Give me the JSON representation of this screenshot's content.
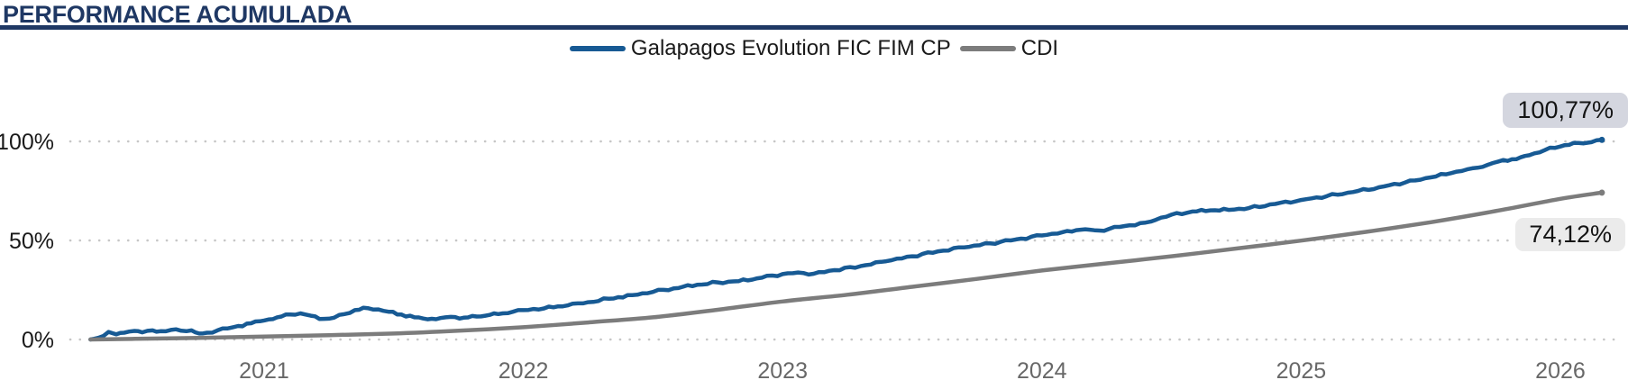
{
  "header": {
    "title": "PERFORMANCE ACUMULADA"
  },
  "legend": {
    "fund": "Galapagos Evolution FIC FIM CP",
    "cdi": "CDI",
    "position": "top-center"
  },
  "colors": {
    "title_navy": "#1F3864",
    "fund_line": "#175A94",
    "cdi_line": "#7C7C7C",
    "grid_dots": "#C6C6C6",
    "y_label": "#1A1A1A",
    "x_label": "#686868",
    "fund_badge_bg": "#D4D6DF",
    "cdi_badge_bg": "#EBEBEB",
    "badge_text": "#141414"
  },
  "chart_data": {
    "type": "line",
    "title": "PERFORMANCE ACUMULADA",
    "xlabel": "",
    "ylabel": "",
    "grid": "dotted-horizontal",
    "legend_position": "top-center",
    "x_ticks": [
      {
        "label": "2021",
        "year": 2021
      },
      {
        "label": "2022",
        "year": 2022
      },
      {
        "label": "2023",
        "year": 2023
      },
      {
        "label": "2024",
        "year": 2024
      },
      {
        "label": "2025",
        "year": 2025
      },
      {
        "label": "2026",
        "year": 2026
      }
    ],
    "y_ticks": [
      {
        "label": "0%",
        "value": 0
      },
      {
        "label": "50%",
        "value": 50
      },
      {
        "label": "100%",
        "value": 100
      }
    ],
    "x_range_years": [
      2020.33,
      2026.32
    ],
    "y_range_pct": [
      0,
      100.77
    ],
    "series": [
      {
        "name": "Galapagos Evolution FIC FIM CP",
        "color": "#175A94",
        "end_label": "100,77%",
        "end_value": 100.77,
        "noisy": true,
        "points": [
          [
            2020.33,
            0
          ],
          [
            2020.36,
            0.8
          ],
          [
            2020.4,
            3.8
          ],
          [
            2020.43,
            2.6
          ],
          [
            2020.46,
            3.4
          ],
          [
            2020.5,
            4.3
          ],
          [
            2020.53,
            3.6
          ],
          [
            2020.57,
            4.6
          ],
          [
            2020.6,
            4.2
          ],
          [
            2020.64,
            4.8
          ],
          [
            2020.68,
            4.4
          ],
          [
            2020.72,
            4.6
          ],
          [
            2020.75,
            3.0
          ],
          [
            2020.78,
            3.4
          ],
          [
            2020.82,
            4.6
          ],
          [
            2020.86,
            5.6
          ],
          [
            2020.9,
            6.8
          ],
          [
            2020.95,
            8.2
          ],
          [
            2021.0,
            9.6
          ],
          [
            2021.05,
            11.2
          ],
          [
            2021.1,
            12.6
          ],
          [
            2021.14,
            13.2
          ],
          [
            2021.18,
            12.0
          ],
          [
            2021.23,
            10.4
          ],
          [
            2021.27,
            11.0
          ],
          [
            2021.31,
            12.8
          ],
          [
            2021.35,
            14.8
          ],
          [
            2021.4,
            15.8
          ],
          [
            2021.44,
            15.2
          ],
          [
            2021.48,
            14.0
          ],
          [
            2021.53,
            12.6
          ],
          [
            2021.58,
            11.2
          ],
          [
            2021.63,
            10.2
          ],
          [
            2021.68,
            10.8
          ],
          [
            2021.72,
            11.4
          ],
          [
            2021.77,
            11.0
          ],
          [
            2021.82,
            11.6
          ],
          [
            2021.87,
            12.4
          ],
          [
            2021.92,
            13.2
          ],
          [
            2021.96,
            14.0
          ],
          [
            2022.0,
            14.8
          ],
          [
            2022.08,
            15.7
          ],
          [
            2022.17,
            17.2
          ],
          [
            2022.25,
            18.8
          ],
          [
            2022.33,
            20.6
          ],
          [
            2022.42,
            22.4
          ],
          [
            2022.5,
            24.0
          ],
          [
            2022.58,
            25.8
          ],
          [
            2022.67,
            27.6
          ],
          [
            2022.75,
            28.8
          ],
          [
            2022.83,
            29.4
          ],
          [
            2022.92,
            31.2
          ],
          [
            2023.0,
            33.0
          ],
          [
            2023.06,
            33.8
          ],
          [
            2023.12,
            33.2
          ],
          [
            2023.2,
            35.0
          ],
          [
            2023.3,
            37.0
          ],
          [
            2023.4,
            39.5
          ],
          [
            2023.5,
            42.0
          ],
          [
            2023.6,
            44.5
          ],
          [
            2023.7,
            46.5
          ],
          [
            2023.8,
            48.5
          ],
          [
            2023.9,
            50.5
          ],
          [
            2024.0,
            52.5
          ],
          [
            2024.08,
            54.2
          ],
          [
            2024.15,
            55.4
          ],
          [
            2024.22,
            55.0
          ],
          [
            2024.3,
            56.8
          ],
          [
            2024.4,
            59.0
          ],
          [
            2024.5,
            63.0
          ],
          [
            2024.58,
            64.6
          ],
          [
            2024.65,
            65.2
          ],
          [
            2024.72,
            65.4
          ],
          [
            2024.8,
            66.4
          ],
          [
            2024.9,
            68.4
          ],
          [
            2025.0,
            70.4
          ],
          [
            2025.1,
            72.4
          ],
          [
            2025.2,
            74.4
          ],
          [
            2025.3,
            76.8
          ],
          [
            2025.4,
            79.2
          ],
          [
            2025.5,
            81.8
          ],
          [
            2025.58,
            84.0
          ],
          [
            2025.66,
            86.4
          ],
          [
            2025.72,
            88.2
          ],
          [
            2025.78,
            90.6
          ],
          [
            2025.83,
            91.0
          ],
          [
            2025.88,
            93.0
          ],
          [
            2025.94,
            95.6
          ],
          [
            2026.0,
            97.4
          ],
          [
            2026.05,
            99.2
          ],
          [
            2026.09,
            99.0
          ],
          [
            2026.12,
            99.6
          ],
          [
            2026.16,
            100.77
          ]
        ]
      },
      {
        "name": "CDI",
        "color": "#7C7C7C",
        "end_label": "74,12%",
        "end_value": 74.12,
        "noisy": false,
        "points": [
          [
            2020.33,
            0
          ],
          [
            2020.5,
            0.3
          ],
          [
            2020.75,
            0.8
          ],
          [
            2021.0,
            1.5
          ],
          [
            2021.25,
            2.2
          ],
          [
            2021.5,
            3.0
          ],
          [
            2021.75,
            4.4
          ],
          [
            2022.0,
            6.2
          ],
          [
            2022.25,
            8.6
          ],
          [
            2022.5,
            11.2
          ],
          [
            2022.75,
            15.0
          ],
          [
            2023.0,
            19.2
          ],
          [
            2023.25,
            22.6
          ],
          [
            2023.5,
            26.6
          ],
          [
            2023.75,
            30.6
          ],
          [
            2024.0,
            34.8
          ],
          [
            2024.25,
            38.4
          ],
          [
            2024.5,
            42.0
          ],
          [
            2024.75,
            45.9
          ],
          [
            2025.0,
            49.9
          ],
          [
            2025.25,
            54.3
          ],
          [
            2025.5,
            59.2
          ],
          [
            2025.75,
            64.8
          ],
          [
            2026.0,
            71.0
          ],
          [
            2026.16,
            74.12
          ]
        ]
      }
    ]
  }
}
